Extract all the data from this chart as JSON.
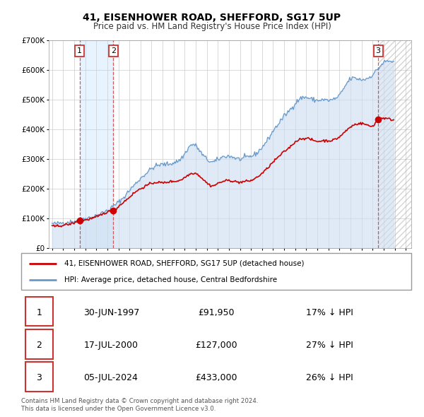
{
  "title": "41, EISENHOWER ROAD, SHEFFORD, SG17 5UP",
  "subtitle": "Price paid vs. HM Land Registry's House Price Index (HPI)",
  "ylim": [
    0,
    700000
  ],
  "yticks": [
    0,
    100000,
    200000,
    300000,
    400000,
    500000,
    600000,
    700000
  ],
  "ytick_labels": [
    "£0",
    "£100K",
    "£200K",
    "£300K",
    "£400K",
    "£500K",
    "£600K",
    "£700K"
  ],
  "xlim_start": 1994.7,
  "xlim_end": 2027.5,
  "xticks": [
    1995,
    1996,
    1997,
    1998,
    1999,
    2000,
    2001,
    2002,
    2003,
    2004,
    2005,
    2006,
    2007,
    2008,
    2009,
    2010,
    2011,
    2012,
    2013,
    2014,
    2015,
    2016,
    2017,
    2018,
    2019,
    2020,
    2021,
    2022,
    2023,
    2024,
    2025,
    2026,
    2027
  ],
  "price_paid_color": "#cc0000",
  "hpi_color": "#6699cc",
  "hpi_fill_color": "#ccddf0",
  "marker_color": "#cc0000",
  "sale1_x": 1997.496,
  "sale1_y": 91950,
  "sale1_label": "1",
  "sale2_x": 2000.538,
  "sale2_y": 127000,
  "sale2_label": "2",
  "sale3_x": 2024.505,
  "sale3_y": 433000,
  "sale3_label": "3",
  "shade1_start": 1997.496,
  "shade1_end": 2000.538,
  "hatch_start": 2024.505,
  "legend_line1": "41, EISENHOWER ROAD, SHEFFORD, SG17 5UP (detached house)",
  "legend_line2": "HPI: Average price, detached house, Central Bedfordshire",
  "table_data": [
    {
      "num": "1",
      "date": "30-JUN-1997",
      "price": "£91,950",
      "hpi": "17% ↓ HPI"
    },
    {
      "num": "2",
      "date": "17-JUL-2000",
      "price": "£127,000",
      "hpi": "27% ↓ HPI"
    },
    {
      "num": "3",
      "date": "05-JUL-2024",
      "price": "£433,000",
      "hpi": "26% ↓ HPI"
    }
  ],
  "footer1": "Contains HM Land Registry data © Crown copyright and database right 2024.",
  "footer2": "This data is licensed under the Open Government Licence v3.0.",
  "label_box_color": "#cc3333",
  "grid_color": "#cccccc"
}
